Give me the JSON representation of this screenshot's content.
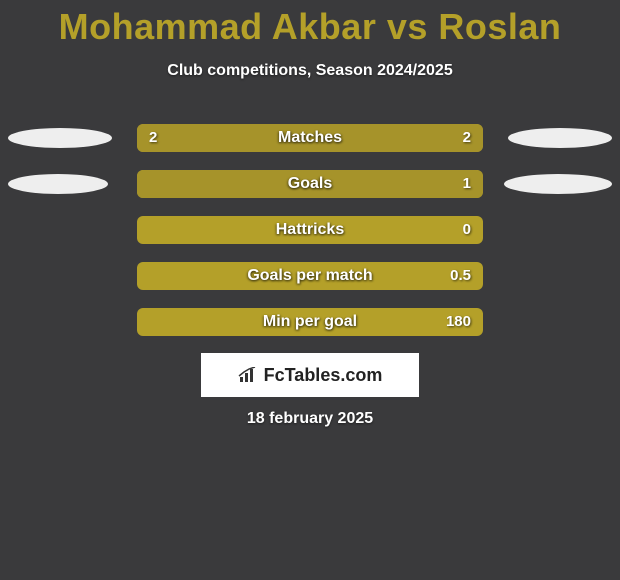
{
  "background_color": "#3a3a3c",
  "title": {
    "text": "Mohammad Akbar vs Roslan",
    "color": "#b4a029",
    "fontsize": 36
  },
  "subtitle": {
    "text": "Club competitions, Season 2024/2025",
    "color": "#ffffff",
    "fontsize": 16
  },
  "bar_colors": {
    "track": "#b4a029",
    "left_fill": "#a6932a",
    "right_fill": "#a6932a"
  },
  "ellipse_color": "#eeeeee",
  "stats": [
    {
      "label": "Matches",
      "left_value": "2",
      "right_value": "2",
      "left_pct": 50,
      "right_pct": 50,
      "left_ellipse_width": 104,
      "right_ellipse_width": 104
    },
    {
      "label": "Goals",
      "left_value": "",
      "right_value": "1",
      "left_pct": 0,
      "right_pct": 100,
      "left_ellipse_width": 100,
      "right_ellipse_width": 108
    },
    {
      "label": "Hattricks",
      "left_value": "",
      "right_value": "0",
      "left_pct": 0,
      "right_pct": 0,
      "left_ellipse_width": 0,
      "right_ellipse_width": 0
    },
    {
      "label": "Goals per match",
      "left_value": "",
      "right_value": "0.5",
      "left_pct": 0,
      "right_pct": 0,
      "left_ellipse_width": 0,
      "right_ellipse_width": 0
    },
    {
      "label": "Min per goal",
      "left_value": "",
      "right_value": "180",
      "left_pct": 0,
      "right_pct": 0,
      "left_ellipse_width": 0,
      "right_ellipse_width": 0
    }
  ],
  "logo": {
    "text": "FcTables.com",
    "icon_name": "bar-chart-icon"
  },
  "date": {
    "text": "18 february 2025",
    "color": "#ffffff"
  }
}
